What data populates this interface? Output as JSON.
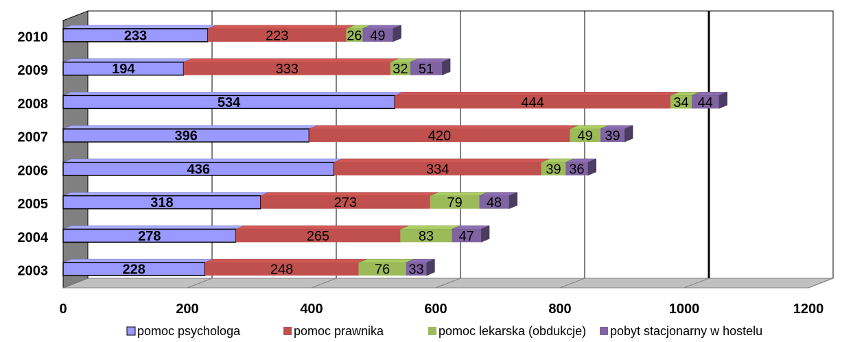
{
  "chart_data": {
    "type": "bar",
    "orientation": "horizontal",
    "stacked": true,
    "three_d": true,
    "categories": [
      "2010",
      "2009",
      "2008",
      "2007",
      "2006",
      "2005",
      "2004",
      "2003"
    ],
    "series": [
      {
        "name": "pomoc psychologa",
        "color": "#9999ff",
        "values": [
          233,
          194,
          534,
          396,
          436,
          318,
          278,
          228
        ]
      },
      {
        "name": "pomoc prawnika",
        "color": "#c0504d",
        "values": [
          223,
          333,
          444,
          420,
          334,
          273,
          265,
          248
        ]
      },
      {
        "name": "pomoc lekarska (obdukcje)",
        "color": "#9bbb59",
        "values": [
          26,
          32,
          34,
          49,
          39,
          79,
          83,
          76
        ]
      },
      {
        "name": "pobyt stacjonarny w hostelu",
        "color": "#8064a2",
        "values": [
          49,
          51,
          44,
          39,
          36,
          48,
          47,
          33
        ]
      }
    ],
    "x_ticks": [
      0,
      200,
      400,
      600,
      800,
      1000,
      1200
    ],
    "xlim": [
      0,
      1200
    ],
    "grid": true,
    "legend_position": "bottom",
    "title": "",
    "xlabel": "",
    "ylabel": ""
  }
}
